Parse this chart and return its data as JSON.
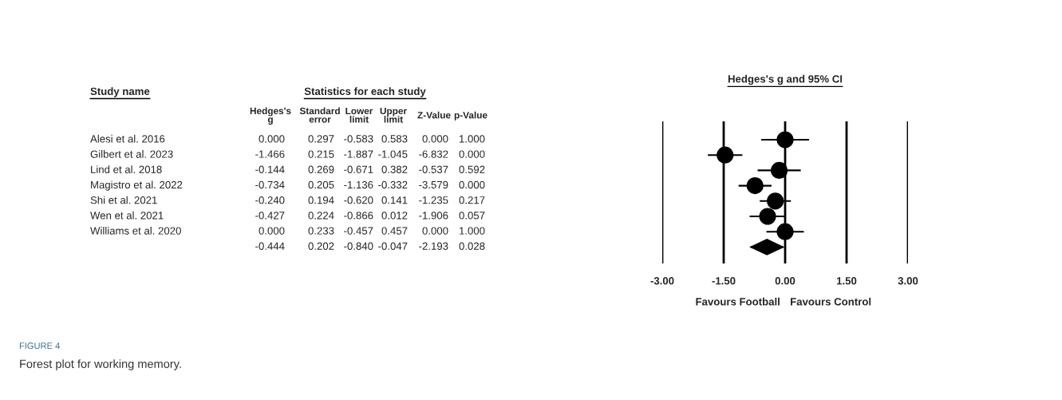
{
  "chart_data": [
    {
      "type": "other",
      "title": "Statistics for each study",
      "categories": [
        "Hedges's\ng",
        "Standard\nerror",
        "Lower\nlimit",
        "Upper\nlimit",
        "Z-Value",
        "p-Value"
      ],
      "cell_labels": [
        [
          "0.000",
          "0.297",
          "-0.583",
          "0.583",
          "0.000",
          "1.000"
        ],
        [
          "-1.466",
          "0.215",
          "-1.887",
          "-1.045",
          "-6.832",
          "0.000"
        ],
        [
          "-0.144",
          "0.269",
          "-0.671",
          "0.382",
          "-0.537",
          "0.592"
        ],
        [
          "-0.734",
          "0.205",
          "-1.136",
          "-0.332",
          "-3.579",
          "0.000"
        ],
        [
          "-0.240",
          "0.194",
          "-0.620",
          "0.141",
          "-1.235",
          "0.217"
        ],
        [
          "-0.427",
          "0.224",
          "-0.866",
          "0.012",
          "-1.906",
          "0.057"
        ],
        [
          "0.000",
          "0.233",
          "-0.457",
          "0.457",
          "0.000",
          "1.000"
        ],
        [
          "-0.444",
          "0.202",
          "-0.840",
          "-0.047",
          "-2.193",
          "0.028"
        ]
      ],
      "annotations": [
        "Study name",
        "FIGURE 4",
        "Forest plot for working memory."
      ]
    },
    {
      "type": "scatter",
      "title": "Hedges's g and 95% CI",
      "orientation": "horizontal",
      "categories": [
        "Alesi et al. 2016",
        "Gilbert et al. 2023",
        "Lind et al. 2018",
        "Magistro et al. 2022",
        "Shi et al. 2021",
        "Wen et al. 2021",
        "Williams et al. 2020",
        null
      ],
      "tick_labels": "x",
      "series": [
        {
          "color": "#000000",
          "marker": "circle",
          "values": [
            0.0,
            -1.466,
            -0.144,
            -0.734,
            -0.24,
            -0.427,
            0.0,
            null
          ],
          "errors": [
            [
              -0.583,
              0.583
            ],
            [
              -1.887,
              -1.045
            ],
            [
              -0.671,
              0.382
            ],
            [
              -1.136,
              -0.332
            ],
            [
              -0.62,
              0.141
            ],
            [
              -0.866,
              0.012
            ],
            [
              -0.457,
              0.457
            ],
            null
          ]
        },
        {
          "color": "#000000",
          "marker": "diamond",
          "values": [
            null,
            null,
            null,
            null,
            null,
            null,
            null,
            -0.444
          ],
          "errors": [
            null,
            null,
            null,
            null,
            null,
            null,
            null,
            [
              -0.84,
              -0.047
            ]
          ]
        }
      ],
      "xlim": [
        -3,
        3
      ],
      "xticks": [
        {
          "value": -3,
          "label": "-3.00"
        },
        {
          "value": -1.5,
          "label": "-1.50"
        },
        {
          "value": 0,
          "label": "0.00"
        },
        {
          "value": 1.5,
          "label": "1.50"
        },
        {
          "value": 3,
          "label": "3.00"
        }
      ],
      "grid": "x",
      "annotations": [
        "Favours Football",
        "Favours Control"
      ]
    }
  ]
}
